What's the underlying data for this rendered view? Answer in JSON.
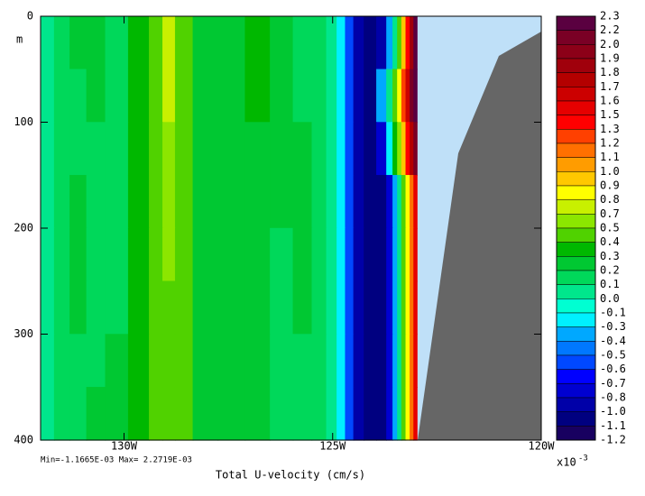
{
  "chart_data": {
    "type": "contour",
    "xlabel": "Total U-velocity (cm/s)",
    "ylabel": "m",
    "stats": "Min=-1.1665E-03  Max= 2.2719E-03",
    "xlim": [
      -132,
      -120
    ],
    "xticks": [
      {
        "value": -130,
        "label": "130W"
      },
      {
        "value": -125,
        "label": "125W"
      },
      {
        "value": -120,
        "label": "120W"
      }
    ],
    "ylim": [
      0,
      400
    ],
    "yticks": [
      0,
      100,
      200,
      300,
      400
    ],
    "y_reversed": true,
    "x": [
      -131.85,
      -131.5,
      -131.1,
      -130.7,
      -130.2,
      -129.6,
      -129.2,
      -128.95,
      -128.6,
      -128.1,
      -127.4,
      -126.8,
      -126.2,
      -125.7,
      -125.3,
      -125.0,
      -124.8,
      -124.6,
      -124.4,
      -124.1,
      -123.8,
      -123.62,
      -123.5,
      -123.4,
      -123.3,
      -123.2,
      -123.1,
      -123.02
    ],
    "y": [
      25,
      75,
      125,
      175,
      225,
      275,
      325,
      375
    ],
    "z": [
      [
        0.05,
        0.15,
        0.25,
        0.25,
        0.15,
        0.35,
        0.45,
        0.75,
        0.45,
        0.25,
        0.25,
        0.35,
        0.25,
        0.15,
        0.15,
        0.05,
        -0.2,
        -0.55,
        -0.9,
        -1.1,
        -0.9,
        -0.35,
        0.05,
        0.45,
        0.95,
        1.4,
        1.85,
        2.25
      ],
      [
        0.05,
        0.15,
        0.15,
        0.25,
        0.15,
        0.35,
        0.45,
        0.75,
        0.45,
        0.25,
        0.25,
        0.35,
        0.25,
        0.15,
        0.15,
        0.05,
        -0.2,
        -0.55,
        -0.9,
        -1.1,
        -0.35,
        0.05,
        0.45,
        0.85,
        1.25,
        1.65,
        2.0,
        2.25
      ],
      [
        0.05,
        0.15,
        0.15,
        0.15,
        0.15,
        0.35,
        0.45,
        0.6,
        0.45,
        0.25,
        0.25,
        0.25,
        0.25,
        0.25,
        0.15,
        0.05,
        -0.2,
        -0.55,
        -0.9,
        -1.1,
        -0.75,
        -0.2,
        0.3,
        0.6,
        0.95,
        1.4,
        1.75,
        2.1
      ],
      [
        0.05,
        0.15,
        0.25,
        0.15,
        0.15,
        0.35,
        0.45,
        0.6,
        0.45,
        0.25,
        0.25,
        0.25,
        0.25,
        0.25,
        0.15,
        0.05,
        -0.2,
        -0.55,
        -0.9,
        -1.1,
        -1.05,
        -0.75,
        -0.35,
        0.05,
        0.45,
        0.85,
        1.15,
        1.55
      ],
      [
        0.05,
        0.15,
        0.25,
        0.15,
        0.15,
        0.35,
        0.45,
        0.6,
        0.45,
        0.25,
        0.25,
        0.25,
        0.15,
        0.25,
        0.15,
        0.05,
        -0.2,
        -0.55,
        -0.9,
        -1.1,
        -1.05,
        -0.75,
        -0.35,
        0.05,
        0.45,
        0.85,
        1.15,
        1.55
      ],
      [
        0.05,
        0.15,
        0.25,
        0.15,
        0.15,
        0.35,
        0.45,
        0.45,
        0.45,
        0.25,
        0.25,
        0.25,
        0.15,
        0.25,
        0.15,
        0.05,
        -0.2,
        -0.55,
        -0.9,
        -1.1,
        -1.05,
        -0.75,
        -0.35,
        0.05,
        0.45,
        0.85,
        1.15,
        1.55
      ],
      [
        0.05,
        0.15,
        0.15,
        0.15,
        0.25,
        0.35,
        0.45,
        0.45,
        0.45,
        0.25,
        0.25,
        0.25,
        0.15,
        0.15,
        0.15,
        0.05,
        -0.2,
        -0.55,
        -0.9,
        -1.1,
        -1.05,
        -0.75,
        -0.35,
        0.05,
        0.45,
        0.85,
        1.15,
        1.55
      ],
      [
        0.05,
        0.15,
        0.15,
        0.25,
        0.25,
        0.35,
        0.45,
        0.45,
        0.45,
        0.25,
        0.25,
        0.25,
        0.15,
        0.15,
        0.15,
        0.05,
        -0.2,
        -0.55,
        -0.9,
        -1.1,
        -1.05,
        -0.75,
        -0.35,
        0.05,
        0.45,
        0.85,
        1.15,
        1.55
      ]
    ],
    "colorbar": {
      "ticks": [
        2.3,
        2.2,
        {
          "value": 2,
          "label": "2.0"
        },
        1.9,
        1.8,
        1.7,
        1.6,
        1.5,
        1.3,
        1.2,
        1.1,
        {
          "value": 1,
          "label": "1.0"
        },
        0.9,
        0.8,
        0.7,
        0.5,
        0.4,
        0.3,
        0.2,
        0.1,
        {
          "value": 0,
          "label": "0.0"
        },
        -0.1,
        -0.3,
        -0.4,
        -0.5,
        -0.6,
        -0.7,
        -0.8,
        {
          "value": -1,
          "label": "-1.0"
        },
        -1.1,
        -1.2
      ],
      "colors": [
        "#5a0040",
        "#7a0025",
        "#8c0018",
        "#a0000c",
        "#b40000",
        "#cc0000",
        "#e60000",
        "#ff0000",
        "#ff4000",
        "#ff7000",
        "#ff9c00",
        "#ffc800",
        "#ffff00",
        "#c8f000",
        "#8ce600",
        "#50d200",
        "#00b800",
        "#00c832",
        "#00d85a",
        "#00e68c",
        "#00ffd2",
        "#00f0ff",
        "#00a8ff",
        "#0078ff",
        "#0048ff",
        "#0000ff",
        "#0000d0",
        "#0000a8",
        "#000080",
        "#180060"
      ],
      "scale_base": "x10",
      "scale_exponent": -3
    }
  }
}
